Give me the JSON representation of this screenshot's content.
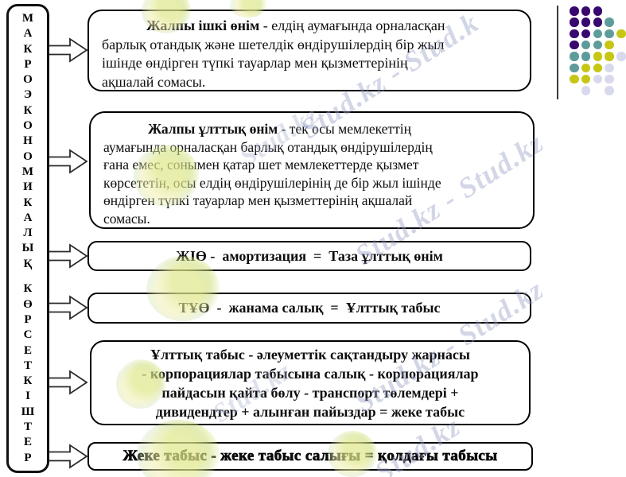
{
  "slide": {
    "title": "МАКРОЭКОНОМИКАЛЫҚ КӨРСЕТКІШТЕР"
  },
  "sidebar": {
    "letters": [
      "М",
      "А",
      "К",
      "Р",
      "О",
      "Э",
      "К",
      "О",
      "Н",
      "О",
      "М",
      "И",
      "К",
      "А",
      "Л",
      "Ы",
      "Қ",
      "",
      "К",
      "Ө",
      "Р",
      "С",
      "Е",
      "Т",
      "К",
      "І",
      "Ш",
      "Т",
      "Е",
      "Р"
    ]
  },
  "boxes": [
    {
      "id": "gdp-definition",
      "term": "Жалпы ішкі өнім",
      "body": " -  елдің аумағында орналасқан\nбарлық отандық және шетелдік  өндірушілердің  бір жыл\nішінде  өндірген түпкі тауарлар мен қызметтерінің\nақшалай  сомасы."
    },
    {
      "id": "gnp-definition",
      "term": "Жалпы ұлттық өнім",
      "body": " - тек осы мемлекеттің\nаумағында орналасқан барлық отандық өндірушілердің\nғана емес, сонымен қатар шет мемлекеттерде  қызмет\nкөрсететін, осы елдің өндірушілерінің  де  бір жыл ішінде\nөндірген түпкі тауарлар мен қызметтерінің  ақшалай\nсомасы."
    },
    {
      "id": "nnp-formula",
      "text": "ЖІӨ -  амортизация  =  Таза ұлттық өнім"
    },
    {
      "id": "national-income-formula",
      "text": "ТҰӨ  -  жанама салық  =  Ұлттық табыс"
    },
    {
      "id": "personal-income-formula",
      "text": "Ұлттық табыс  -  әлеуметтік сақтандыру жарнасы\n-  корпорациялар  табысына салық - корпорациялар\nпайдасын қайта бөлу  -  транспорт  төлемдері  +\nдивидендтер  + алынған пайыздар  =  жеке табыс"
    },
    {
      "id": "disposable-income-formula",
      "text": "Жеке табыс - жеке табыс салығы = қолдағы табысы"
    }
  ],
  "watermarks": [
    "Stud.kz - Stud.k",
    "Stud.kz",
    "Stud.kz - Stud.kz",
    "Stud.kz - Stud.kz",
    "Stud.kz",
    "Stud.kz"
  ],
  "decor": {
    "dots": {
      "pattern": [
        "PPP..",
        "PPPT.",
        "PPTTY",
        "PTTY.",
        "TTYYL",
        "TYYL.",
        "YYLL.",
        ".L.L."
      ],
      "colors": {
        "P": "#38086e",
        "T": "#5e9c9c",
        "Y": "#c6c614",
        "L": "#d9d9ee"
      }
    }
  }
}
